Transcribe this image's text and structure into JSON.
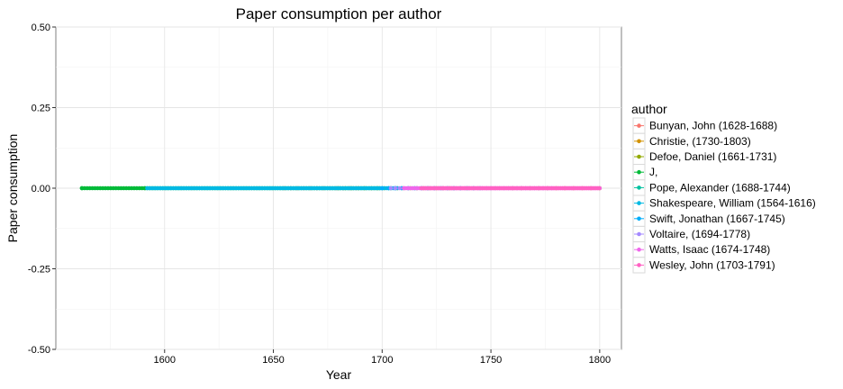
{
  "chart_data": {
    "type": "scatter",
    "title": "Paper consumption per author",
    "xlabel": "Year",
    "ylabel": "Paper consumption",
    "xlim": [
      1550,
      1810
    ],
    "ylim": [
      -0.5,
      0.5
    ],
    "x_ticks": [
      1600,
      1650,
      1700,
      1750,
      1800
    ],
    "y_ticks": [
      0.5,
      0.25,
      0,
      -0.25,
      -0.5
    ],
    "x_tick_labels": [
      "1600",
      "1650",
      "1700",
      "1750",
      "1800"
    ],
    "y_tick_labels": [
      "0.50",
      "0.25",
      "0.00",
      "-0.25",
      "-0.50"
    ],
    "grid": true,
    "legend": {
      "title": "author",
      "position": "right"
    },
    "series": [
      {
        "name": "Bunyan, John (1628-1688)",
        "color": "#F8766D",
        "x_range": [
          1655,
          1688
        ],
        "step": 3,
        "y": 0
      },
      {
        "name": "Christie,  (1730-1803)",
        "color": "#D39200",
        "x_range": [
          1760,
          1800
        ],
        "step": 4,
        "y": 0
      },
      {
        "name": "Defoe, Daniel (1661-1731)",
        "color": "#93AA00",
        "x_range": [
          1680,
          1731
        ],
        "step": 3,
        "y": 0
      },
      {
        "name": "J,",
        "color": "#00BA38",
        "x_range": [
          1562,
          1700
        ],
        "step": 1.2,
        "y": 0,
        "extra_points": [
          1562,
          1591
        ],
        "line": true
      },
      {
        "name": "Pope, Alexander (1688-1744)",
        "color": "#00C19F",
        "x_range": [
          1700,
          1744
        ],
        "step": 3,
        "y": 0
      },
      {
        "name": "Shakespeare, William (1564-1616)",
        "color": "#00B9E3",
        "x_range": [
          1592,
          1707
        ],
        "step": 1,
        "y": 0
      },
      {
        "name": "Swift, Jonathan (1667-1745)",
        "color": "#00ADFA",
        "x_range": [
          1700,
          1745
        ],
        "step": 3,
        "y": 0
      },
      {
        "name": "Voltaire,  (1694-1778)",
        "color": "#A58AFF",
        "x_range": [
          1704,
          1778
        ],
        "step": 2,
        "y": 0
      },
      {
        "name": "Watts, Isaac (1674-1748)",
        "color": "#EF67EB",
        "x_range": [
          1710,
          1800
        ],
        "step": 1,
        "y": 0
      },
      {
        "name": "Wesley, John (1703-1791)",
        "color": "#FF61C3",
        "x_range": [
          1718,
          1800
        ],
        "step": 0.8,
        "y": 0
      }
    ]
  }
}
